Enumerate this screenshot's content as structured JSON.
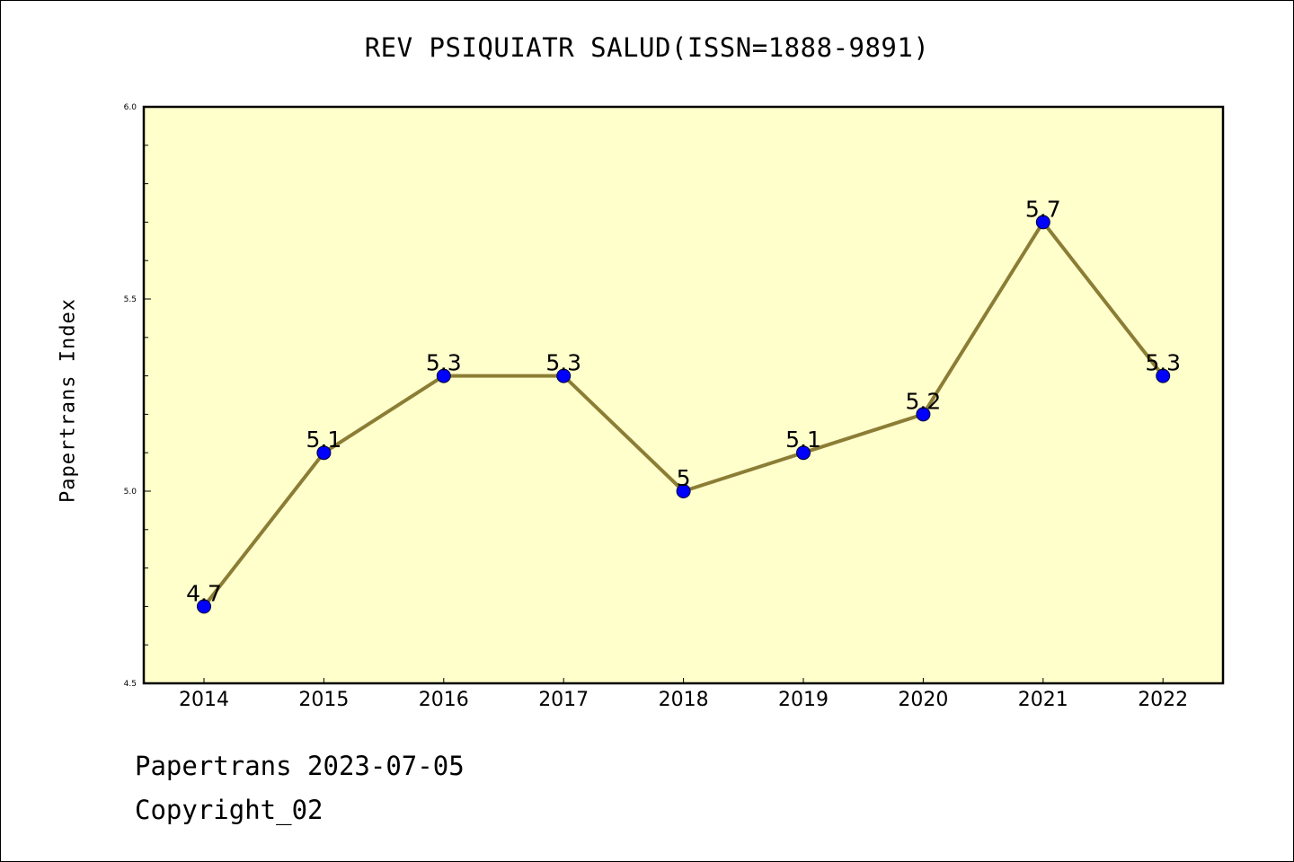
{
  "chart_data": {
    "type": "line",
    "title": "REV PSIQUIATR SALUD(ISSN=1888-9891)",
    "xlabel": "",
    "ylabel": "Papertrans Index",
    "categories": [
      "2014",
      "2015",
      "2016",
      "2017",
      "2018",
      "2019",
      "2020",
      "2021",
      "2022"
    ],
    "values": [
      4.7,
      5.1,
      5.3,
      5.3,
      5.0,
      5.1,
      5.2,
      5.7,
      5.3
    ],
    "data_labels": [
      "4.7",
      "5.1",
      "5.3",
      "5.3",
      "5",
      "5.1",
      "5.2",
      "5.7",
      "5.3"
    ],
    "ylim": [
      4.5,
      6.0
    ],
    "yticks": [
      "4.5",
      "5.0",
      "5.5",
      "6.0"
    ],
    "grid": false,
    "legend": "none",
    "colors": {
      "plot_background": "#ffffcc",
      "line": "#8b7d35",
      "marker": "#0000ff",
      "marker_edge": "#000033"
    }
  },
  "footer": {
    "date_line": "Papertrans 2023-07-05",
    "copyright_line": "Copyright_02"
  }
}
